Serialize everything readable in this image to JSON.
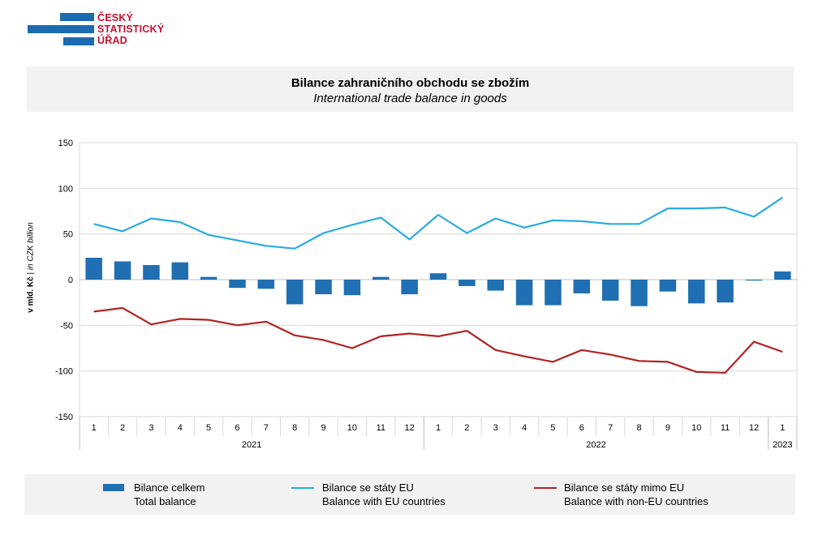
{
  "logo": {
    "lines": [
      "ČESKÝ",
      "STATISTICKÝ",
      "ÚŘAD"
    ],
    "colors": {
      "bars": "#1a6bb0",
      "text": "#c8102e"
    }
  },
  "header": {
    "title_cz": "Bilance zahraničního obchodu se zbožím",
    "title_en": "International trade balance in goods"
  },
  "yaxis_title": {
    "bold": "v mld. Kč",
    "sep": " | ",
    "italic": "in CZK billion"
  },
  "legend": [
    {
      "line1": "Bilance celkem",
      "line2": "Total balance",
      "symbol": "bar",
      "color": "#1f6fb2"
    },
    {
      "line1": "Bilance se státy EU",
      "line2": "Balance with EU countries",
      "symbol": "line",
      "color": "#29abe2"
    },
    {
      "line1": "Bilance se státy mimo EU",
      "line2": "Balance with non-EU countries",
      "symbol": "line",
      "color": "#b22222"
    }
  ],
  "chart_data": {
    "type": "bar",
    "ylim": [
      -150,
      150
    ],
    "yticks": [
      -150,
      -100,
      -50,
      0,
      50,
      100,
      150
    ],
    "grid": true,
    "legend_position": "bottom",
    "categories": [
      "1",
      "2",
      "3",
      "4",
      "5",
      "6",
      "7",
      "8",
      "9",
      "10",
      "11",
      "12",
      "1",
      "2",
      "3",
      "4",
      "5",
      "6",
      "7",
      "8",
      "9",
      "10",
      "11",
      "12",
      "1"
    ],
    "year_groups": [
      {
        "label": "2021",
        "count": 12
      },
      {
        "label": "2022",
        "count": 12
      },
      {
        "label": "2023",
        "count": 1
      }
    ],
    "series": [
      {
        "name": "Bilance celkem",
        "type": "bar",
        "color": "#1f6fb2",
        "values": [
          24,
          20,
          16,
          19,
          3,
          -9,
          -10,
          -27,
          -16,
          -17,
          3,
          -16,
          7,
          -7,
          -12,
          -28,
          -28,
          -15,
          -23,
          -29,
          -13,
          -26,
          -25,
          -1,
          9
        ]
      },
      {
        "name": "Bilance se státy EU",
        "type": "line",
        "color": "#29abe2",
        "values": [
          61,
          53,
          67,
          63,
          49,
          43,
          37,
          34,
          51,
          60,
          68,
          44,
          71,
          51,
          67,
          57,
          65,
          64,
          61,
          61,
          78,
          78,
          79,
          69,
          90
        ]
      },
      {
        "name": "Bilance se státy mimo EU",
        "type": "line",
        "color": "#b22222",
        "values": [
          -35,
          -31,
          -49,
          -43,
          -44,
          -50,
          -46,
          -61,
          -66,
          -75,
          -62,
          -59,
          -62,
          -56,
          -77,
          -84,
          -90,
          -77,
          -82,
          -89,
          -90,
          -101,
          -102,
          -68,
          -79
        ]
      }
    ]
  }
}
